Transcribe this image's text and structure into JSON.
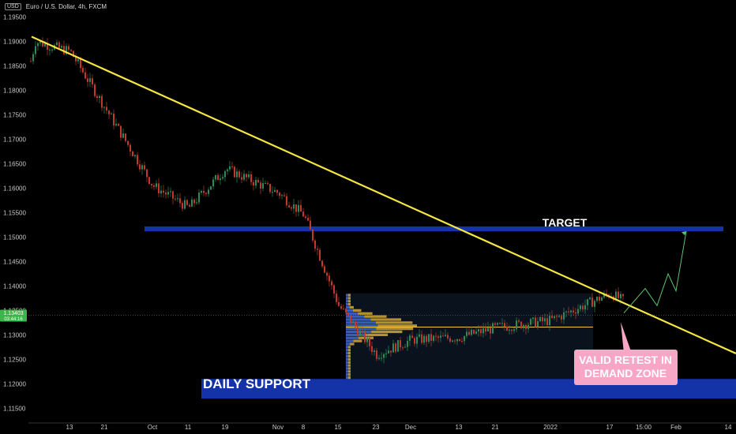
{
  "header": {
    "currency_badge": "USD",
    "symbol_title": "Euro / U.S. Dollar, 4h, FXCM"
  },
  "colors": {
    "background": "#000000",
    "up_candle": "#2e8b57",
    "down_candle": "#c0392b",
    "trendline": "#f5e642",
    "zone": "#1433a8",
    "price_tag": "#3cb54a",
    "callout": "#f7a6c5",
    "projection": "#5ec26e"
  },
  "chart_data": {
    "type": "candlestick",
    "symbol": "EURUSD",
    "timeframe": "4h",
    "y_axis": {
      "range": [
        1.112,
        1.1985
      ],
      "ticks": [
        "1.19500",
        "1.19000",
        "1.18500",
        "1.18000",
        "1.17500",
        "1.17000",
        "1.16500",
        "1.16000",
        "1.15500",
        "1.15000",
        "1.14500",
        "1.14000",
        "1.13500",
        "1.13000",
        "1.12500",
        "1.12000",
        "1.11500"
      ]
    },
    "x_axis": {
      "ticks": [
        "13",
        "21",
        "Oct",
        "11",
        "19",
        "Nov",
        "8",
        "15",
        "23",
        "Dec",
        "13",
        "21",
        "2022",
        "17",
        "15:00",
        "Feb",
        "14"
      ]
    },
    "path_anchors": [
      [
        "13",
        1.188
      ],
      [
        "21",
        1.1765
      ],
      [
        "Oct",
        1.1605
      ],
      [
        "11",
        1.156
      ],
      [
        "19",
        1.164
      ],
      [
        "Nov",
        1.159
      ],
      [
        "8",
        1.1545
      ],
      [
        "15",
        1.136
      ],
      [
        "23",
        1.126
      ],
      [
        "Dec",
        1.129
      ],
      [
        "13",
        1.1295
      ],
      [
        "21",
        1.1315
      ],
      [
        "2022",
        1.133
      ],
      [
        "17",
        1.1385
      ],
      [
        "15:00",
        1.1345
      ]
    ],
    "current_price": {
      "value": "1.13403",
      "countdown": "03:44:16"
    },
    "trendline": {
      "from": [
        1.191
      ],
      "to": [
        1.1262
      ]
    },
    "zones": [
      {
        "label": "TARGET",
        "low": 1.1512,
        "high": 1.1522
      },
      {
        "label": "DAILY SUPPORT",
        "low": 1.117,
        "high": 1.121
      }
    ],
    "poc_level": 1.1316,
    "projection": [
      1.1345,
      1.1395,
      1.136,
      1.1425,
      1.139,
      1.1512
    ],
    "annotations": [
      "TARGET",
      "DAILY SUPPORT",
      "VALID RETEST IN\nDEMAND ZONE"
    ]
  }
}
